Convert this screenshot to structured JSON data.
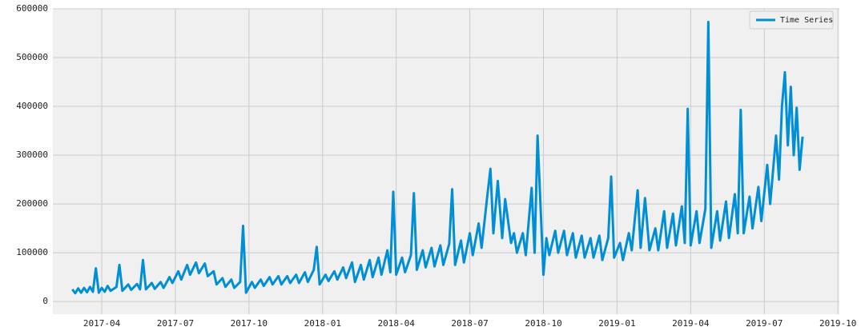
{
  "chart_data": {
    "type": "line",
    "x": [
      2017.15,
      2017.16,
      2017.17,
      2017.18,
      2017.19,
      2017.2,
      2017.21,
      2017.22,
      2017.23,
      2017.24,
      2017.25,
      2017.26,
      2017.27,
      2017.28,
      2017.3,
      2017.31,
      2017.32,
      2017.34,
      2017.35,
      2017.37,
      2017.38,
      2017.39,
      2017.4,
      2017.42,
      2017.43,
      2017.45,
      2017.46,
      2017.48,
      2017.49,
      2017.51,
      2017.52,
      2017.54,
      2017.55,
      2017.57,
      2017.58,
      2017.6,
      2017.61,
      2017.63,
      2017.64,
      2017.66,
      2017.67,
      2017.69,
      2017.7,
      2017.72,
      2017.73,
      2017.74,
      2017.76,
      2017.77,
      2017.79,
      2017.8,
      2017.82,
      2017.83,
      2017.85,
      2017.86,
      2017.88,
      2017.89,
      2017.91,
      2017.92,
      2017.94,
      2017.95,
      2017.97,
      2017.98,
      2017.99,
      2018.01,
      2018.02,
      2018.04,
      2018.05,
      2018.07,
      2018.08,
      2018.1,
      2018.11,
      2018.13,
      2018.14,
      2018.16,
      2018.17,
      2018.19,
      2018.2,
      2018.22,
      2018.23,
      2018.24,
      2018.25,
      2018.27,
      2018.28,
      2018.3,
      2018.31,
      2018.32,
      2018.34,
      2018.35,
      2018.37,
      2018.38,
      2018.4,
      2018.41,
      2018.43,
      2018.44,
      2018.45,
      2018.47,
      2018.48,
      2018.5,
      2018.51,
      2018.53,
      2018.54,
      2018.56,
      2018.57,
      2018.58,
      2018.595,
      2018.61,
      2018.62,
      2018.64,
      2018.65,
      2018.66,
      2018.68,
      2018.69,
      2018.71,
      2018.72,
      2018.73,
      2018.75,
      2018.76,
      2018.77,
      2018.79,
      2018.8,
      2018.82,
      2018.83,
      2018.85,
      2018.86,
      2018.88,
      2018.89,
      2018.91,
      2018.92,
      2018.94,
      2018.95,
      2018.97,
      2018.98,
      2018.99,
      2019.01,
      2019.02,
      2019.04,
      2019.05,
      2019.07,
      2019.08,
      2019.095,
      2019.11,
      2019.13,
      2019.14,
      2019.16,
      2019.17,
      2019.19,
      2019.2,
      2019.22,
      2019.23,
      2019.24,
      2019.25,
      2019.27,
      2019.28,
      2019.3,
      2019.31,
      2019.32,
      2019.34,
      2019.35,
      2019.37,
      2019.38,
      2019.4,
      2019.41,
      2019.42,
      2019.43,
      2019.45,
      2019.46,
      2019.48,
      2019.49,
      2019.51,
      2019.52,
      2019.54,
      2019.55,
      2019.56,
      2019.57,
      2019.58,
      2019.59,
      2019.6,
      2019.61,
      2019.62,
      2019.63
    ],
    "series": [
      {
        "name": "Time Series",
        "color": "#008fd5",
        "values": [
          25000,
          17000,
          27000,
          18000,
          28000,
          19000,
          30000,
          20000,
          68000,
          18000,
          28000,
          20000,
          32000,
          22000,
          30000,
          75000,
          22000,
          35000,
          24000,
          36000,
          25000,
          85000,
          25000,
          38000,
          26000,
          40000,
          28000,
          50000,
          38000,
          62000,
          45000,
          75000,
          55000,
          80000,
          58000,
          78000,
          52000,
          62000,
          35000,
          48000,
          30000,
          45000,
          28000,
          40000,
          155000,
          18000,
          40000,
          28000,
          45000,
          32000,
          50000,
          35000,
          52000,
          35000,
          52000,
          38000,
          55000,
          38000,
          60000,
          40000,
          65000,
          112000,
          35000,
          55000,
          42000,
          62000,
          45000,
          70000,
          48000,
          80000,
          40000,
          75000,
          45000,
          85000,
          50000,
          90000,
          55000,
          105000,
          60000,
          225000,
          55000,
          90000,
          60000,
          95000,
          222000,
          65000,
          105000,
          70000,
          110000,
          72000,
          115000,
          75000,
          118000,
          230000,
          75000,
          125000,
          80000,
          140000,
          95000,
          160000,
          110000,
          220000,
          272000,
          140000,
          247000,
          130000,
          210000,
          120000,
          140000,
          100000,
          140000,
          95000,
          233000,
          100000,
          340000,
          55000,
          130000,
          95000,
          145000,
          100000,
          145000,
          95000,
          140000,
          90000,
          135000,
          90000,
          130000,
          90000,
          135000,
          85000,
          130000,
          256000,
          90000,
          120000,
          85000,
          140000,
          105000,
          228000,
          110000,
          212000,
          105000,
          150000,
          105000,
          185000,
          110000,
          180000,
          115000,
          195000,
          120000,
          395000,
          115000,
          185000,
          120000,
          190000,
          573000,
          110000,
          185000,
          125000,
          205000,
          130000,
          220000,
          140000,
          393000,
          140000,
          215000,
          150000,
          235000,
          165000,
          280000,
          200000,
          340000,
          250000,
          400000,
          470000,
          320000,
          440000,
          300000,
          397000,
          270000,
          338000
        ]
      }
    ],
    "xlim": [
      2017.084,
      2019.755
    ],
    "xticks": [
      {
        "value": 2017.25,
        "label": "2017-04"
      },
      {
        "value": 2017.5,
        "label": "2017-07"
      },
      {
        "value": 2017.75,
        "label": "2017-10"
      },
      {
        "value": 2018.0,
        "label": "2018-01"
      },
      {
        "value": 2018.25,
        "label": "2018-04"
      },
      {
        "value": 2018.5,
        "label": "2018-07"
      },
      {
        "value": 2018.75,
        "label": "2018-10"
      },
      {
        "value": 2019.0,
        "label": "2019-01"
      },
      {
        "value": 2019.25,
        "label": "2019-04"
      },
      {
        "value": 2019.5,
        "label": "2019-07"
      },
      {
        "value": 2019.75,
        "label": "2019-10"
      }
    ],
    "ylim": [
      -26000,
      600000
    ],
    "yticks": [
      0,
      100000,
      200000,
      300000,
      400000,
      500000,
      600000
    ],
    "grid": true,
    "legend": "upper right"
  }
}
